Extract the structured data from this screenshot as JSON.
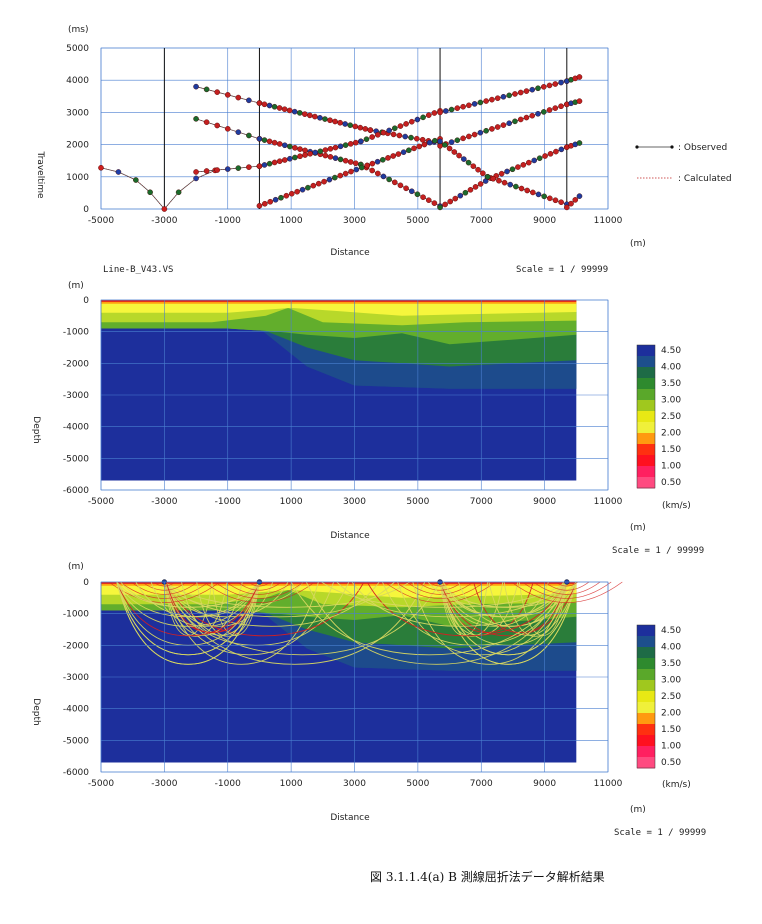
{
  "caption": "図 3.1.1.4(a)  B 測線屈折法データ解析結果",
  "colors": {
    "grid": "#4a7fd0",
    "shot": "#000000",
    "observed": "#cc1f1f",
    "calculated": "#8a2020",
    "ray": "#d8d860",
    "ray_red": "#d62020"
  },
  "chart_data": [
    {
      "type": "scatter",
      "id": "traveltime",
      "ylabel": "Traveltime",
      "yunit": "(ms)",
      "xlabel": "Distance",
      "xunit": "(m)",
      "xlim": [
        -5000,
        11000
      ],
      "ylim": [
        0,
        5000
      ],
      "xticks": [
        -5000,
        -3000,
        -1000,
        1000,
        3000,
        5000,
        7000,
        9000,
        11000
      ],
      "yticks": [
        0,
        1000,
        2000,
        3000,
        4000,
        5000
      ],
      "grid": true,
      "shot_positions": [
        -3000,
        0,
        5700,
        9700
      ],
      "legend": [
        {
          "label": ": Observed",
          "style": "dots"
        },
        {
          "label": ": Calculated",
          "style": "dotted"
        }
      ],
      "series": [
        {
          "points": [
            [
              -5000,
              1280
            ],
            [
              -4450,
              1150
            ],
            [
              -3900,
              900
            ],
            [
              -3450,
              520
            ],
            [
              -3000,
              0
            ],
            [
              -2550,
              520
            ],
            [
              -2000,
              950
            ],
            [
              -1400,
              1200
            ]
          ],
          "colors": [
            "#cc1f1f",
            "#1f3fa8",
            "#1a6a2a",
            "#1a6a2a",
            "#cc1f1f",
            "#1a6a2a",
            "#1f3fa8",
            "#cc1f1f"
          ]
        },
        {
          "start": [
            -2000,
            3800
          ],
          "end": [
            0,
            3290
          ],
          "n": 6
        },
        {
          "start": [
            -2000,
            2800
          ],
          "end": [
            0,
            2180
          ],
          "n": 6
        },
        {
          "start": [
            -2000,
            1150
          ],
          "end": [
            0,
            1330
          ],
          "n": 6
        },
        {
          "start": [
            0,
            3290
          ],
          "end": [
            3500,
            2450
          ],
          "n": 22
        },
        {
          "start": [
            3500,
            2450
          ],
          "end": [
            5700,
            2050
          ],
          "n": 12
        },
        {
          "start": [
            0,
            2180
          ],
          "end": [
            3200,
            1380
          ],
          "n": 20
        },
        {
          "start": [
            3200,
            1380
          ],
          "end": [
            5700,
            90
          ],
          "n": 14
        },
        {
          "start": [
            0,
            100
          ],
          "end": [
            3400,
            1350
          ],
          "n": 20
        },
        {
          "start": [
            3400,
            1350
          ],
          "end": [
            5700,
            2180
          ],
          "n": 14
        },
        {
          "start": [
            0,
            1330
          ],
          "end": [
            3200,
            2100
          ],
          "n": 20
        },
        {
          "start": [
            3200,
            2100
          ],
          "end": [
            5700,
            3050
          ],
          "n": 14
        },
        {
          "start": [
            5700,
            50
          ],
          "end": [
            7300,
            960
          ],
          "n": 10
        },
        {
          "start": [
            7300,
            960
          ],
          "end": [
            9700,
            1920
          ],
          "n": 14
        },
        {
          "start": [
            5700,
            1960
          ],
          "end": [
            9700,
            3250
          ],
          "n": 22
        },
        {
          "start": [
            5700,
            3000
          ],
          "end": [
            9700,
            3970
          ],
          "n": 22
        },
        {
          "start": [
            5700,
            2100
          ],
          "end": [
            7200,
            1000
          ],
          "n": 10
        },
        {
          "start": [
            7200,
            1000
          ],
          "end": [
            9700,
            150
          ],
          "n": 14
        },
        {
          "start": [
            9700,
            50
          ],
          "end": [
            10100,
            400
          ],
          "n": 3
        },
        {
          "start": [
            9700,
            1920
          ],
          "end": [
            10100,
            2050
          ],
          "n": 3
        },
        {
          "start": [
            9700,
            3250
          ],
          "end": [
            10100,
            3350
          ],
          "n": 3
        },
        {
          "start": [
            9700,
            3970
          ],
          "end": [
            10100,
            4100
          ],
          "n": 3
        }
      ]
    },
    {
      "type": "heatmap",
      "id": "velocity",
      "title": "Line-B_V43.VS",
      "scale": "Scale = 1 / 99999",
      "ylabel": "Depth",
      "yunit": "(m)",
      "xlabel": "Distance",
      "xunit": "(m)",
      "xlim": [
        -5000,
        11000
      ],
      "ylim": [
        -6000,
        0
      ],
      "xticks": [
        -5000,
        -3000,
        -1000,
        1000,
        3000,
        5000,
        7000,
        9000,
        11000
      ],
      "yticks": [
        0,
        -1000,
        -2000,
        -3000,
        -4000,
        -5000,
        -6000
      ],
      "model_extent": {
        "xmin": -5000,
        "xmax": 10000,
        "ymin": -5700,
        "ymax": 0
      },
      "colorbar": {
        "unit": "(km/s)",
        "labels": [
          "4.50",
          "4.00",
          "3.50",
          "3.00",
          "2.50",
          "2.00",
          "1.50",
          "1.00",
          "0.50"
        ],
        "colors": [
          "#1d2f9c",
          "#1d4f8c",
          "#1e6b46",
          "#2e8a2e",
          "#5aa82a",
          "#a0c81e",
          "#e8e814",
          "#f0f03a",
          "#ff9a10",
          "#ff3010",
          "#ff1020",
          "#ff2060",
          "#ff4a80"
        ]
      },
      "layers": [
        {
          "velocity": 0.5,
          "color": "#e0201c",
          "top": [
            [
              -5000,
              0
            ],
            [
              10000,
              0
            ]
          ],
          "bottom": [
            [
              -5000,
              -60
            ],
            [
              10000,
              -60
            ]
          ]
        },
        {
          "velocity": 1.5,
          "color": "#ffa010",
          "top": [
            [
              -5000,
              -60
            ],
            [
              10000,
              -60
            ]
          ],
          "bottom": [
            [
              -5000,
              -120
            ],
            [
              10000,
              -120
            ]
          ]
        },
        {
          "velocity": 2.0,
          "color": "#f6f63c",
          "top": [
            [
              -5000,
              -120
            ],
            [
              10000,
              -120
            ]
          ],
          "bottom": [
            [
              -5000,
              -400
            ],
            [
              -1000,
              -400
            ],
            [
              300,
              -300
            ],
            [
              1000,
              -250
            ],
            [
              2500,
              -350
            ],
            [
              4500,
              -500
            ],
            [
              6500,
              -450
            ],
            [
              10000,
              -380
            ]
          ]
        },
        {
          "velocity": 2.5,
          "color": "#b8d82a",
          "top": [
            [
              -5000,
              -400
            ],
            [
              10000,
              -400
            ]
          ],
          "bottom": [
            [
              -5000,
              -700
            ],
            [
              -1500,
              -700
            ],
            [
              200,
              -500
            ],
            [
              900,
              -250
            ],
            [
              2000,
              -700
            ],
            [
              4500,
              -800
            ],
            [
              6500,
              -700
            ],
            [
              10000,
              -650
            ]
          ]
        },
        {
          "velocity": 3.0,
          "color": "#62ae2c",
          "top": [
            [
              -5000,
              -700
            ],
            [
              10000,
              -700
            ]
          ],
          "bottom": [
            [
              -5000,
              -900
            ],
            [
              -1000,
              -900
            ],
            [
              600,
              -1000
            ],
            [
              1500,
              -1100
            ],
            [
              3000,
              -1200
            ],
            [
              4500,
              -1050
            ],
            [
              6000,
              -1400
            ],
            [
              8000,
              -1250
            ],
            [
              10000,
              -1100
            ]
          ]
        },
        {
          "velocity": 3.5,
          "color": "#2a7d3a",
          "top": [
            [
              -5000,
              -900
            ],
            [
              10000,
              -900
            ]
          ],
          "bottom": [
            [
              -5000,
              -900
            ],
            [
              0,
              -900
            ],
            [
              1500,
              -1500
            ],
            [
              3000,
              -1900
            ],
            [
              4500,
              -2000
            ],
            [
              6000,
              -2100
            ],
            [
              8000,
              -2000
            ],
            [
              10000,
              -1900
            ]
          ]
        },
        {
          "velocity": 4.0,
          "color": "#1d4b8c",
          "top": [
            [
              -5000,
              -900
            ],
            [
              10000,
              -900
            ]
          ],
          "bottom": [
            [
              -5000,
              -900
            ],
            [
              0,
              -900
            ],
            [
              1500,
              -2100
            ],
            [
              3000,
              -2700
            ],
            [
              6000,
              -2800
            ],
            [
              10000,
              -2800
            ]
          ]
        }
      ],
      "basement": {
        "velocity": 4.5,
        "color": "#1d2f9c"
      }
    },
    {
      "type": "heatmap",
      "id": "raypath",
      "scale": "Scale = 1 / 99999",
      "ylabel": "Depth",
      "yunit": "(m)",
      "xlabel": "Distance",
      "xunit": "(m)",
      "xlim": [
        -5000,
        11000
      ],
      "ylim": [
        -6000,
        0
      ],
      "xticks": [
        -5000,
        -3000,
        -1000,
        1000,
        3000,
        5000,
        7000,
        9000,
        11000
      ],
      "yticks": [
        0,
        -1000,
        -2000,
        -3000,
        -4000,
        -5000,
        -6000
      ],
      "shot_positions": [
        -3000,
        0,
        5700,
        9700
      ],
      "colorbar": {
        "unit": "(km/s)",
        "labels": [
          "4.50",
          "4.00",
          "3.50",
          "3.00",
          "2.50",
          "2.00",
          "1.50",
          "1.00",
          "0.50"
        ]
      }
    }
  ]
}
